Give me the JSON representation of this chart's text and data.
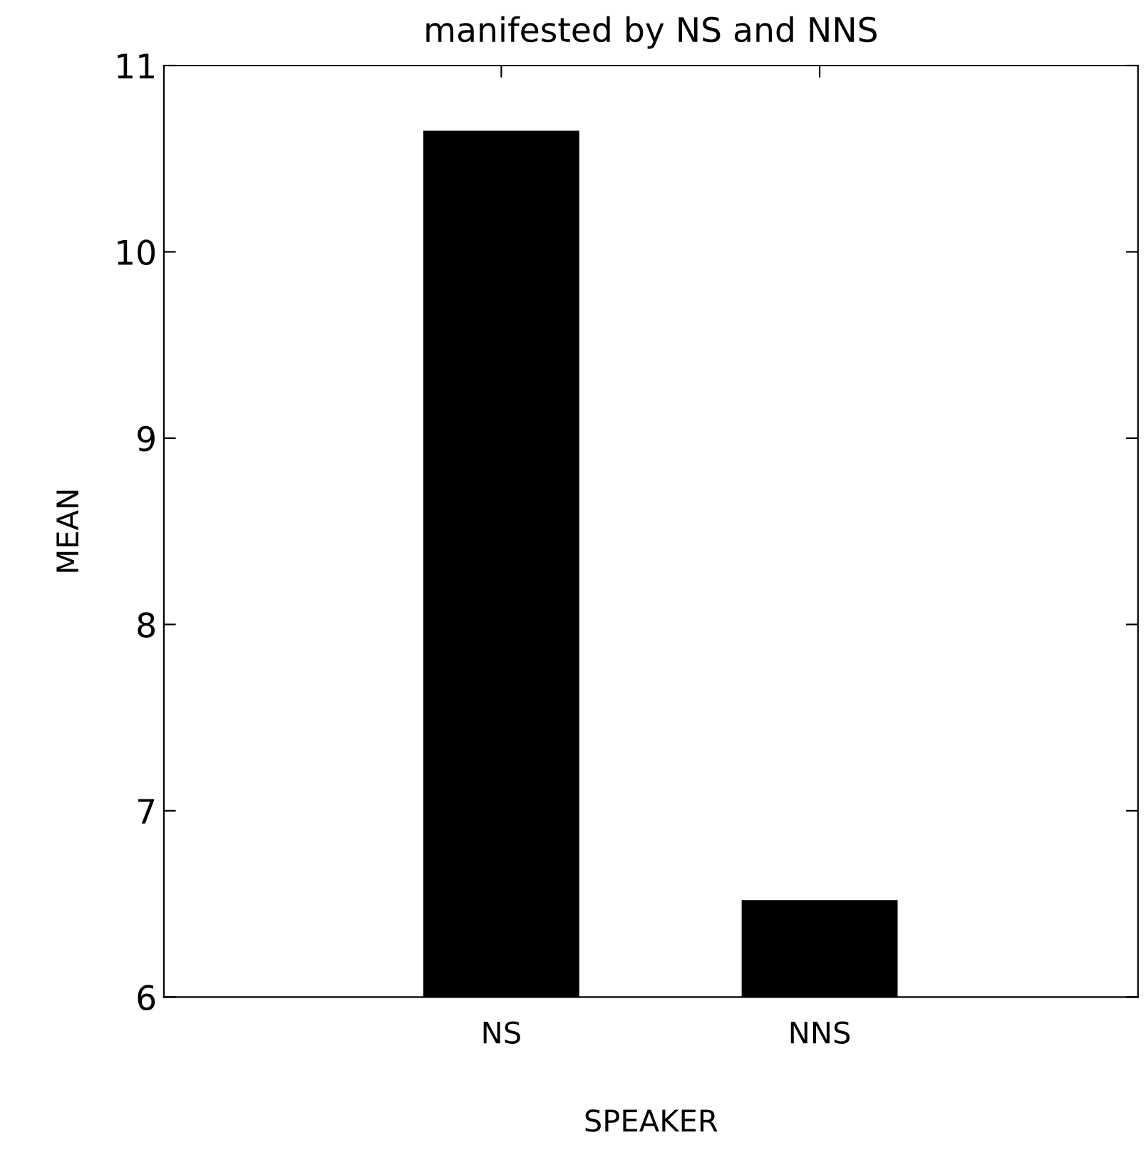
{
  "chart_data": {
    "type": "bar",
    "title": "manifested by NS and NNS",
    "xlabel": "SPEAKER",
    "ylabel": "MEAN",
    "categories": [
      "NS",
      "NNS"
    ],
    "values": [
      10.65,
      6.52
    ],
    "color": "#000000",
    "ylim": [
      6,
      11
    ],
    "yticks": [
      6,
      7,
      8,
      9,
      10,
      11
    ],
    "grid": false
  }
}
